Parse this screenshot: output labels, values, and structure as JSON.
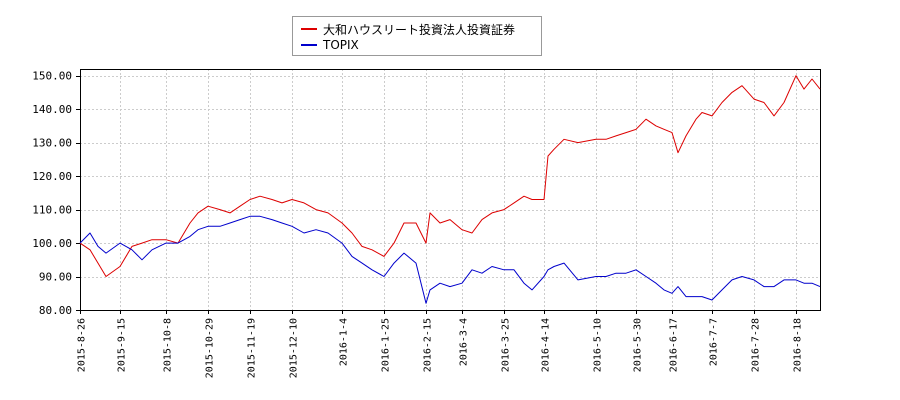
{
  "chart_data": {
    "type": "line",
    "title": "",
    "xlabel": "",
    "ylabel": "",
    "ylim": [
      80,
      152
    ],
    "yticks": [
      80.0,
      90.0,
      100.0,
      110.0,
      120.0,
      130.0,
      140.0,
      150.0
    ],
    "ytick_labels": [
      "80.00",
      "90.00",
      "100.00",
      "110.00",
      "120.00",
      "130.00",
      "140.00",
      "150.00"
    ],
    "x_range": [
      "2015-8-26",
      "2016-8-30"
    ],
    "xtick_labels": [
      "2015-8-26",
      "2015-9-15",
      "2015-10-8",
      "2015-10-29",
      "2015-11-19",
      "2015-12-10",
      "2016-1-4",
      "2016-1-25",
      "2016-2-15",
      "2016-3-4",
      "2016-3-25",
      "2016-4-14",
      "2016-5-10",
      "2016-5-30",
      "2016-6-17",
      "2016-7-7",
      "2016-7-28",
      "2016-8-18"
    ],
    "grid": true,
    "legend_position": "top-center",
    "series": [
      {
        "name": "大和ハウスリート投資法人投資証券",
        "color": "#dd0000",
        "x": [
          "2015-8-26",
          "2015-8-31",
          "2015-9-4",
          "2015-9-8",
          "2015-9-15",
          "2015-9-21",
          "2015-9-26",
          "2015-10-1",
          "2015-10-8",
          "2015-10-14",
          "2015-10-20",
          "2015-10-24",
          "2015-10-29",
          "2015-11-4",
          "2015-11-9",
          "2015-11-14",
          "2015-11-19",
          "2015-11-24",
          "2015-11-30",
          "2015-12-5",
          "2015-12-10",
          "2015-12-16",
          "2015-12-22",
          "2015-12-28",
          "2016-1-4",
          "2016-1-9",
          "2016-1-14",
          "2016-1-19",
          "2016-1-25",
          "2016-1-30",
          "2016-2-4",
          "2016-2-10",
          "2016-2-15",
          "2016-2-17",
          "2016-2-22",
          "2016-2-27",
          "2016-3-4",
          "2016-3-9",
          "2016-3-14",
          "2016-3-19",
          "2016-3-25",
          "2016-3-30",
          "2016-4-4",
          "2016-4-8",
          "2016-4-14",
          "2016-4-16",
          "2016-4-19",
          "2016-4-24",
          "2016-5-1",
          "2016-5-10",
          "2016-5-15",
          "2016-5-20",
          "2016-5-25",
          "2016-5-30",
          "2016-6-4",
          "2016-6-9",
          "2016-6-13",
          "2016-6-17",
          "2016-6-20",
          "2016-6-24",
          "2016-6-29",
          "2016-7-2",
          "2016-7-7",
          "2016-7-12",
          "2016-7-17",
          "2016-7-22",
          "2016-7-28",
          "2016-8-2",
          "2016-8-7",
          "2016-8-12",
          "2016-8-18",
          "2016-8-22",
          "2016-8-26",
          "2016-8-30"
        ],
        "values": [
          100.0,
          98.0,
          94.0,
          90.0,
          93.0,
          99.0,
          100.0,
          101.0,
          101.0,
          100.0,
          106.0,
          109.0,
          111.0,
          110.0,
          109.0,
          111.0,
          113.0,
          114.0,
          113.0,
          112.0,
          113.0,
          112.0,
          110.0,
          109.0,
          106.0,
          103.0,
          99.0,
          98.0,
          96.0,
          100.0,
          106.0,
          106.0,
          100.0,
          109.0,
          106.0,
          107.0,
          104.0,
          103.0,
          107.0,
          109.0,
          110.0,
          112.0,
          114.0,
          113.0,
          113.0,
          126.0,
          128.0,
          131.0,
          130.0,
          131.0,
          131.0,
          132.0,
          133.0,
          134.0,
          137.0,
          135.0,
          134.0,
          133.0,
          127.0,
          132.0,
          137.0,
          139.0,
          138.0,
          142.0,
          145.0,
          147.0,
          143.0,
          142.0,
          138.0,
          142.0,
          150.0,
          146.0,
          149.0,
          146.0
        ]
      },
      {
        "name": "TOPIX",
        "color": "#0000cc",
        "x": [
          "2015-8-26",
          "2015-8-31",
          "2015-9-4",
          "2015-9-8",
          "2015-9-15",
          "2015-9-21",
          "2015-9-26",
          "2015-10-1",
          "2015-10-8",
          "2015-10-14",
          "2015-10-20",
          "2015-10-24",
          "2015-10-29",
          "2015-11-4",
          "2015-11-9",
          "2015-11-14",
          "2015-11-19",
          "2015-11-24",
          "2015-11-30",
          "2015-12-5",
          "2015-12-10",
          "2015-12-16",
          "2015-12-22",
          "2015-12-28",
          "2016-1-4",
          "2016-1-9",
          "2016-1-14",
          "2016-1-19",
          "2016-1-25",
          "2016-1-30",
          "2016-2-4",
          "2016-2-10",
          "2016-2-15",
          "2016-2-17",
          "2016-2-22",
          "2016-2-27",
          "2016-3-4",
          "2016-3-9",
          "2016-3-14",
          "2016-3-19",
          "2016-3-25",
          "2016-3-30",
          "2016-4-4",
          "2016-4-8",
          "2016-4-14",
          "2016-4-16",
          "2016-4-19",
          "2016-4-24",
          "2016-5-1",
          "2016-5-10",
          "2016-5-15",
          "2016-5-20",
          "2016-5-25",
          "2016-5-30",
          "2016-6-4",
          "2016-6-9",
          "2016-6-13",
          "2016-6-17",
          "2016-6-20",
          "2016-6-24",
          "2016-6-29",
          "2016-7-2",
          "2016-7-7",
          "2016-7-12",
          "2016-7-17",
          "2016-7-22",
          "2016-7-28",
          "2016-8-2",
          "2016-8-7",
          "2016-8-12",
          "2016-8-18",
          "2016-8-22",
          "2016-8-26",
          "2016-8-30"
        ],
        "values": [
          100.0,
          103.0,
          99.0,
          97.0,
          100.0,
          98.0,
          95.0,
          98.0,
          100.0,
          100.0,
          102.0,
          104.0,
          105.0,
          105.0,
          106.0,
          107.0,
          108.0,
          108.0,
          107.0,
          106.0,
          105.0,
          103.0,
          104.0,
          103.0,
          100.0,
          96.0,
          94.0,
          92.0,
          90.0,
          94.0,
          97.0,
          94.0,
          82.0,
          86.0,
          88.0,
          87.0,
          88.0,
          92.0,
          91.0,
          93.0,
          92.0,
          92.0,
          88.0,
          86.0,
          90.0,
          92.0,
          93.0,
          94.0,
          89.0,
          90.0,
          90.0,
          91.0,
          91.0,
          92.0,
          90.0,
          88.0,
          86.0,
          85.0,
          87.0,
          84.0,
          84.0,
          84.0,
          83.0,
          86.0,
          89.0,
          90.0,
          89.0,
          87.0,
          87.0,
          89.0,
          89.0,
          88.0,
          88.0,
          87.0
        ]
      }
    ]
  }
}
